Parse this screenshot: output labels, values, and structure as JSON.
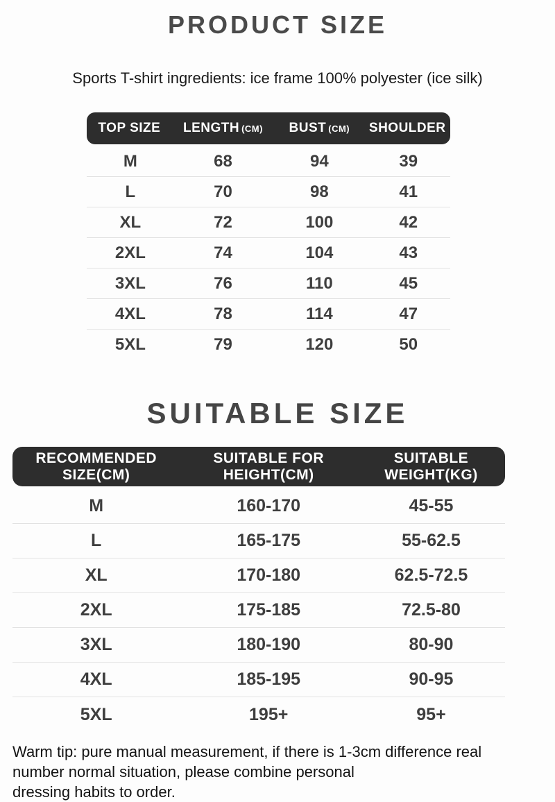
{
  "colors": {
    "header_bar": "#2d2d2d",
    "header_text": "#ffffff",
    "title_text": "#4a4a4a",
    "body_text": "#3e3e3e",
    "divider": "#e2e2e2",
    "background": "#fdfdfd"
  },
  "product_size": {
    "title": "PRODUCT SIZE",
    "subtitle": "Sports T-shirt ingredients: ice frame 100% polyester (ice silk)",
    "table": {
      "columns": [
        {
          "label": "TOP SIZE",
          "unit": ""
        },
        {
          "label": "LENGTH",
          "unit": "(CM)"
        },
        {
          "label": "BUST",
          "unit": "(CM)"
        },
        {
          "label": "SHOULDER",
          "unit": ""
        }
      ],
      "rows": [
        [
          "M",
          "68",
          "94",
          "39"
        ],
        [
          "L",
          "70",
          "98",
          "41"
        ],
        [
          "XL",
          "72",
          "100",
          "42"
        ],
        [
          "2XL",
          "74",
          "104",
          "43"
        ],
        [
          "3XL",
          "76",
          "110",
          "45"
        ],
        [
          "4XL",
          "78",
          "114",
          "47"
        ],
        [
          "5XL",
          "79",
          "120",
          "50"
        ]
      ]
    }
  },
  "suitable_size": {
    "title": "SUITABLE SIZE",
    "table": {
      "columns": [
        {
          "line1": "RECOMMENDED",
          "line2": "SIZE(CM)"
        },
        {
          "line1": "SUITABLE FOR",
          "line2": "HEIGHT(CM)"
        },
        {
          "line1": "SUITABLE",
          "line2": "WEIGHT(KG)"
        }
      ],
      "rows": [
        [
          "M",
          "160-170",
          "45-55"
        ],
        [
          "L",
          "165-175",
          "55-62.5"
        ],
        [
          "XL",
          "170-180",
          "62.5-72.5"
        ],
        [
          "2XL",
          "175-185",
          "72.5-80"
        ],
        [
          "3XL",
          "180-190",
          "80-90"
        ],
        [
          "4XL",
          "185-195",
          "90-95"
        ],
        [
          "5XL",
          "195+",
          "95+"
        ]
      ]
    }
  },
  "footer": {
    "lines": [
      "Warm tip: pure manual measurement, if there is 1-3cm difference real",
      "number normal situation, please combine personal",
      "dressing habits to order."
    ]
  }
}
